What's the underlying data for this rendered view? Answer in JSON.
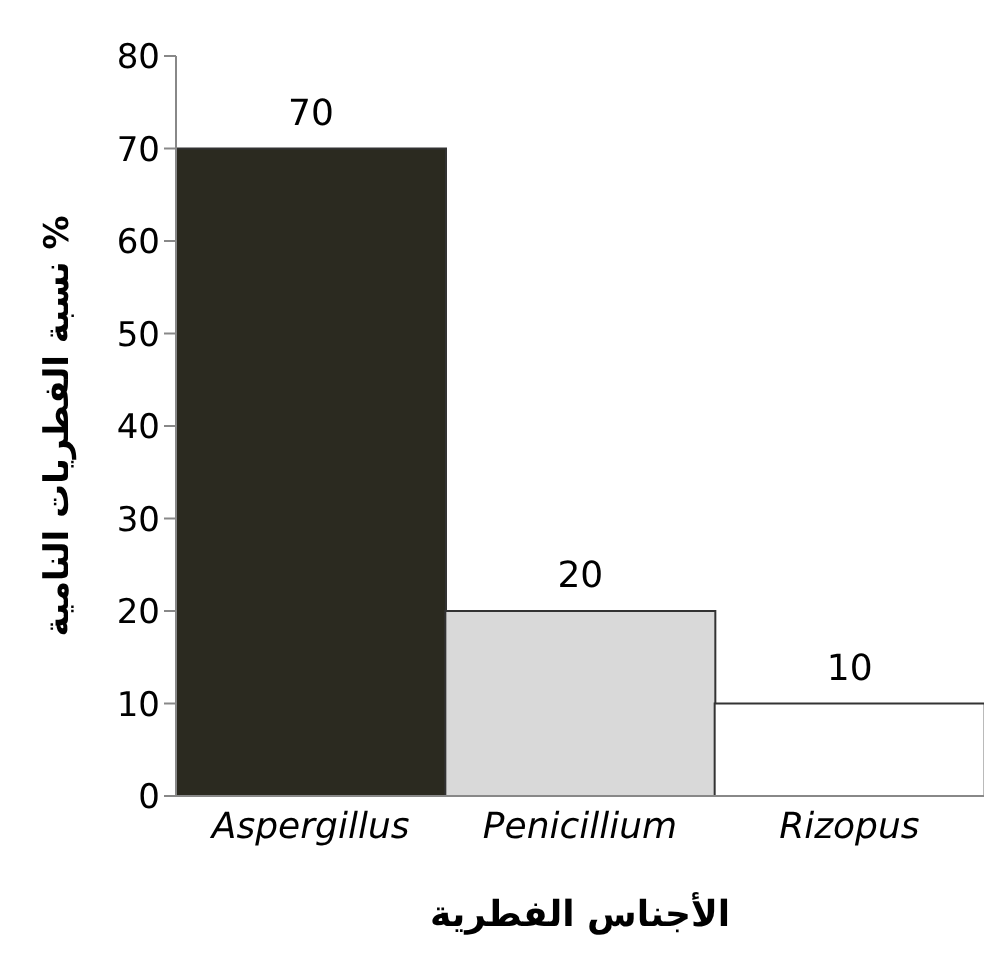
{
  "chart_data": {
    "type": "bar",
    "xlabel": "الأجناس الفطرية",
    "ylabel": "نسبة الفطريات النامية %",
    "categories": [
      "Aspergillus",
      "Penicillium",
      "Rizopus"
    ],
    "values": [
      70,
      20,
      10
    ],
    "colors": [
      "#2b2a20",
      "#d9d9d9",
      "#ffffff"
    ],
    "ylim": [
      0,
      80
    ],
    "yticks": [
      0,
      10,
      20,
      30,
      40,
      50,
      60,
      70,
      80
    ],
    "data_labels": true,
    "grid": false,
    "legend": false
  }
}
